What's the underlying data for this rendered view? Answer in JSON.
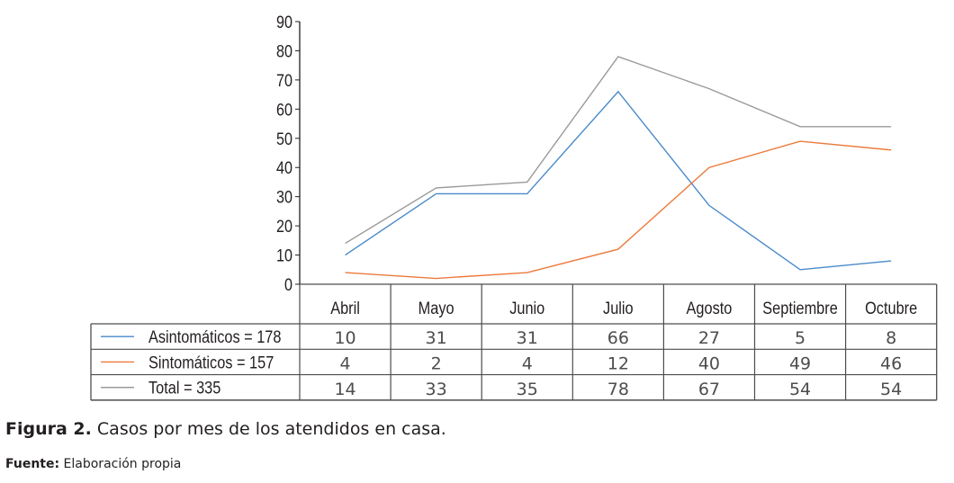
{
  "chart_data": {
    "type": "line",
    "title": "",
    "xlabel": "",
    "ylabel": "",
    "ylim": [
      0,
      90
    ],
    "yticks": [
      0,
      10,
      20,
      30,
      40,
      50,
      60,
      70,
      80,
      90
    ],
    "grid": false,
    "legend_placement": "table-left",
    "categories": [
      "Abril",
      "Mayo",
      "Junio",
      "Julio",
      "Agosto",
      "Septiembre",
      "Octubre"
    ],
    "series": [
      {
        "name": "Asintomáticos = 178",
        "color": "#4a8ac9",
        "values": [
          10,
          31,
          31,
          66,
          27,
          5,
          8
        ]
      },
      {
        "name": "Sintomáticos = 157",
        "color": "#ec7a3b",
        "values": [
          4,
          2,
          4,
          12,
          40,
          49,
          46
        ]
      },
      {
        "name": "Total = 335",
        "color": "#9a9a9a",
        "values": [
          14,
          33,
          35,
          78,
          67,
          54,
          54
        ]
      }
    ]
  },
  "caption": {
    "label": "Figura 2.",
    "text": " Casos por mes de los atendidos en casa."
  },
  "source": {
    "label": "Fuente:",
    "text": " Elaboración propia"
  }
}
